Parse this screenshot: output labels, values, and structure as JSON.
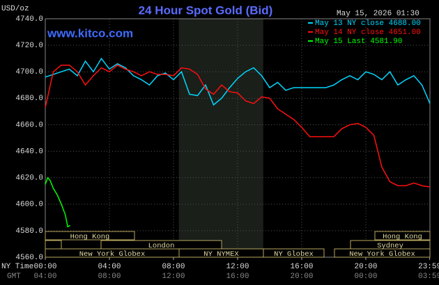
{
  "chart_data": {
    "type": "line",
    "title": "24 Hour Spot Gold (Bid)",
    "y_unit": "USD/oz",
    "timestamp": "May 15, 2026 01:30",
    "watermark": "www.kitco.com",
    "x_row_label": "NY Time",
    "x2_row_label": "GMT",
    "xlim": [
      0,
      24
    ],
    "xticks": [
      {
        "value": 0,
        "label": "00:00"
      },
      {
        "value": 4,
        "label": "04:00"
      },
      {
        "value": 8,
        "label": "08:00"
      },
      {
        "value": 12,
        "label": "12:00"
      },
      {
        "value": 16,
        "label": "16:00"
      },
      {
        "value": 20,
        "label": "20:00"
      },
      {
        "value": 23.983,
        "label": "23:59"
      }
    ],
    "gmt_labels": [
      "04:00",
      "08:00",
      "12:00",
      "16:00",
      "20:00",
      "00:00",
      "03:59"
    ],
    "ylim": [
      4560,
      4740
    ],
    "yticks": [
      {
        "value": 4560,
        "label": "4560.0"
      },
      {
        "value": 4580,
        "label": "4580.0"
      },
      {
        "value": 4600,
        "label": "4600.0"
      },
      {
        "value": 4620,
        "label": "4620.0"
      },
      {
        "value": 4640,
        "label": "4640.0"
      },
      {
        "value": 4660,
        "label": "4660.0"
      },
      {
        "value": 4680,
        "label": "4680.0"
      },
      {
        "value": 4700,
        "label": "4700.0"
      },
      {
        "value": 4720,
        "label": "4720.0"
      },
      {
        "value": 4740,
        "label": "4740.0"
      }
    ],
    "grid": true,
    "sessions": [
      "Hong Kong",
      "London",
      "New York Globex",
      "NY NYMEX",
      "NY Globex",
      "Hong Kong",
      "Sydney",
      "New York Globex"
    ],
    "series": [
      {
        "name": "May 13 NY close 4688.00",
        "color": "#00d8ff",
        "x": [
          0,
          0.5,
          1,
          1.5,
          2,
          2.5,
          3,
          3.5,
          4,
          4.5,
          5,
          5.5,
          6,
          6.5,
          7,
          7.5,
          8,
          8.5,
          9,
          9.5,
          10,
          10.5,
          11,
          11.5,
          12,
          12.5,
          13,
          13.5,
          14,
          14.5,
          15,
          15.5,
          16,
          16.5,
          17,
          17.5,
          18,
          18.5,
          19,
          19.5,
          20,
          20.5,
          21,
          21.5,
          22,
          22.5,
          23,
          23.5,
          24
        ],
        "values": [
          4696,
          4698,
          4700,
          4702,
          4697,
          4708,
          4700,
          4710,
          4702,
          4706,
          4703,
          4697,
          4694,
          4690,
          4697,
          4699,
          4694,
          4700,
          4683,
          4682,
          4690,
          4675,
          4680,
          4688,
          4695,
          4700,
          4703,
          4697,
          4688,
          4692,
          4686,
          4688,
          4688,
          4688,
          4688,
          4688,
          4690,
          4694,
          4697,
          4694,
          4700,
          4698,
          4694,
          4700,
          4690,
          4694,
          4697,
          4690,
          4676
        ]
      },
      {
        "name": "May 14 NY close 4651.00",
        "color": "#ff1010",
        "x": [
          0,
          0.5,
          1,
          1.5,
          2,
          2.5,
          3,
          3.5,
          4,
          4.5,
          5,
          5.5,
          6,
          6.5,
          7,
          7.5,
          8,
          8.5,
          9,
          9.5,
          10,
          10.5,
          11,
          11.5,
          12,
          12.5,
          13,
          13.5,
          14,
          14.5,
          15,
          15.5,
          16,
          16.5,
          17,
          17.5,
          18,
          18.5,
          19,
          19.5,
          20,
          20.5,
          21,
          21.5,
          22,
          22.5,
          23,
          23.5,
          24
        ],
        "values": [
          4673,
          4700,
          4705,
          4705,
          4700,
          4690,
          4697,
          4703,
          4700,
          4705,
          4702,
          4700,
          4697,
          4700,
          4698,
          4698,
          4697,
          4703,
          4702,
          4698,
          4687,
          4683,
          4690,
          4685,
          4684,
          4678,
          4676,
          4681,
          4680,
          4672,
          4668,
          4664,
          4658,
          4651,
          4651,
          4651,
          4651,
          4657,
          4660,
          4661,
          4658,
          4652,
          4628,
          4617,
          4614,
          4614,
          4616,
          4614,
          4613
        ]
      },
      {
        "name": "May 15 Last 4581.90",
        "color": "#00ff00",
        "x": [
          0,
          0.15,
          0.3,
          0.5,
          0.75,
          1,
          1.25,
          1.4,
          1.55
        ],
        "values": [
          4615,
          4620,
          4618,
          4612,
          4607,
          4600,
          4592,
          4583,
          4584
        ]
      }
    ]
  }
}
